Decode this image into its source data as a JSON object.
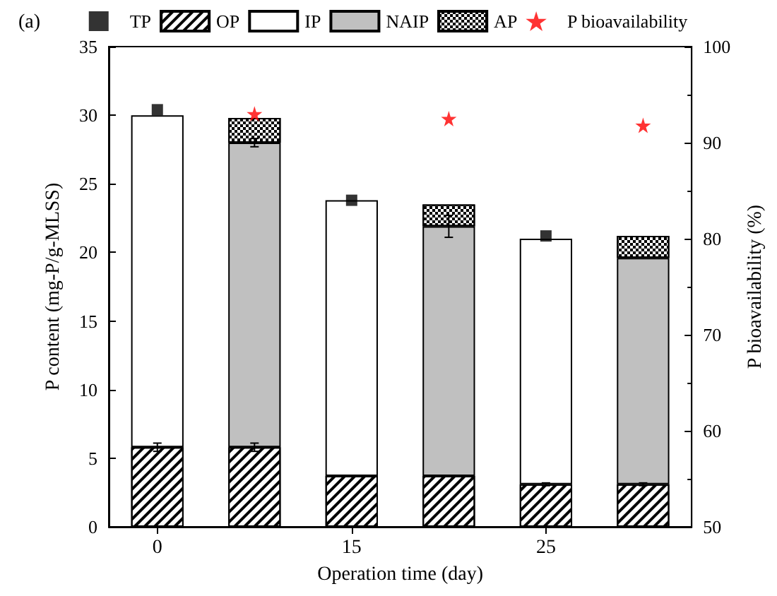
{
  "chart_data": {
    "type": "bar",
    "title": "(a)",
    "xlabel": "Operation time (day)",
    "ylabel": "P content (mg-P/g-MLSS)",
    "y2label": "P bioavailability (%)",
    "categories": [
      "0",
      null,
      "15",
      null,
      "25",
      null
    ],
    "stacked": true,
    "ylim": [
      0,
      35
    ],
    "yticks": [
      0,
      5,
      10,
      15,
      20,
      25,
      30,
      35
    ],
    "y2lim": [
      50,
      100
    ],
    "y2ticks": [
      50,
      60,
      70,
      80,
      90,
      100
    ],
    "grid": false,
    "legend": "top",
    "series": [
      {
        "type": "scatter",
        "name": "TP",
        "color": "#000000",
        "marker": "square",
        "values": [
          30.4,
          null,
          23.8,
          null,
          21.2,
          null
        ]
      },
      {
        "name": "OP",
        "color": "#ffffff",
        "values": [
          5.8,
          5.8,
          3.7,
          3.7,
          3.1,
          3.1
        ],
        "errors": [
          0.3,
          0.3,
          null,
          null,
          0.1,
          0.1
        ]
      },
      {
        "name": "IP",
        "color": "#ffffff",
        "values": [
          24.2,
          null,
          20.1,
          null,
          17.9,
          null
        ]
      },
      {
        "name": "NAIP",
        "color": "#c0c0c0",
        "values": [
          null,
          22.2,
          null,
          18.2,
          null,
          16.5
        ],
        "errors": [
          null,
          0.3,
          null,
          0.8,
          null,
          null
        ]
      },
      {
        "name": "AP",
        "color": "#ffffff",
        "values": [
          null,
          1.8,
          null,
          1.6,
          null,
          1.6
        ]
      },
      {
        "type": "scatter",
        "name": "P bioavailability",
        "color": "#ff0000",
        "marker": "star",
        "axis": "y2",
        "values": [
          null,
          93.0,
          null,
          92.5,
          null,
          91.8
        ]
      }
    ]
  }
}
